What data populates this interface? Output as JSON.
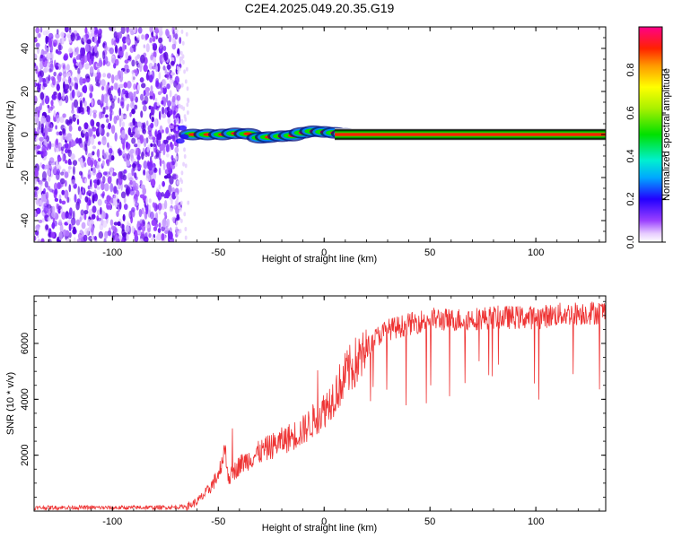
{
  "title": "C2E4.2025.049.20.35.G19",
  "chart_data": [
    {
      "type": "heatmap",
      "xlabel": "Height of straight line (km)",
      "ylabel": "Frequency (Hz)",
      "xlim": [
        -137,
        133
      ],
      "ylim": [
        -50,
        50
      ],
      "x_ticks": [
        "-100",
        "-50",
        "0",
        "50",
        "100"
      ],
      "y_ticks": [
        "40",
        "20",
        "0",
        "-20",
        "-40"
      ],
      "regions": [
        {
          "x_range": [
            -137,
            -70
          ],
          "description_values": {
            "freq_range": [
              -50,
              50
            ],
            "amplitude": [
              0.02,
              0.2
            ]
          }
        },
        {
          "x_range": [
            -70,
            12
          ],
          "description_values": {
            "freq_center": 0,
            "amplitude": [
              0.2,
              0.9
            ]
          }
        },
        {
          "x_range": [
            5,
            133
          ],
          "description_values": {
            "freq_center": 0,
            "amplitude": 0.95
          }
        }
      ],
      "colorbar": {
        "label": "Normalized spectral amplitude",
        "range": [
          0,
          1
        ],
        "ticks": [
          "0.0",
          "0.2",
          "0.4",
          "0.6",
          "0.8"
        ]
      }
    },
    {
      "type": "line",
      "xlabel": "Height of straight line (km)",
      "ylabel": "SNR (10 * v/v)",
      "xlim": [
        -137,
        133
      ],
      "ylim": [
        0,
        7700
      ],
      "x_ticks": [
        "-100",
        "-50",
        "0",
        "50",
        "100"
      ],
      "y_ticks": [
        "6000",
        "4000",
        "2000"
      ],
      "color": "#ee3333",
      "x": [
        -137,
        -120,
        -100,
        -80,
        -70,
        -65,
        -60,
        -55,
        -50,
        -47,
        -45,
        -40,
        -30,
        -20,
        -10,
        0,
        5,
        10,
        15,
        20,
        25,
        30,
        40,
        50,
        60,
        80,
        100,
        110,
        120,
        133
      ],
      "y": [
        150,
        160,
        150,
        160,
        170,
        200,
        400,
        800,
        1400,
        2400,
        1300,
        1800,
        2300,
        2700,
        3100,
        3900,
        4500,
        5200,
        5700,
        6000,
        6400,
        6650,
        6850,
        7050,
        7000,
        7100,
        7100,
        7200,
        7250,
        7300
      ]
    }
  ]
}
